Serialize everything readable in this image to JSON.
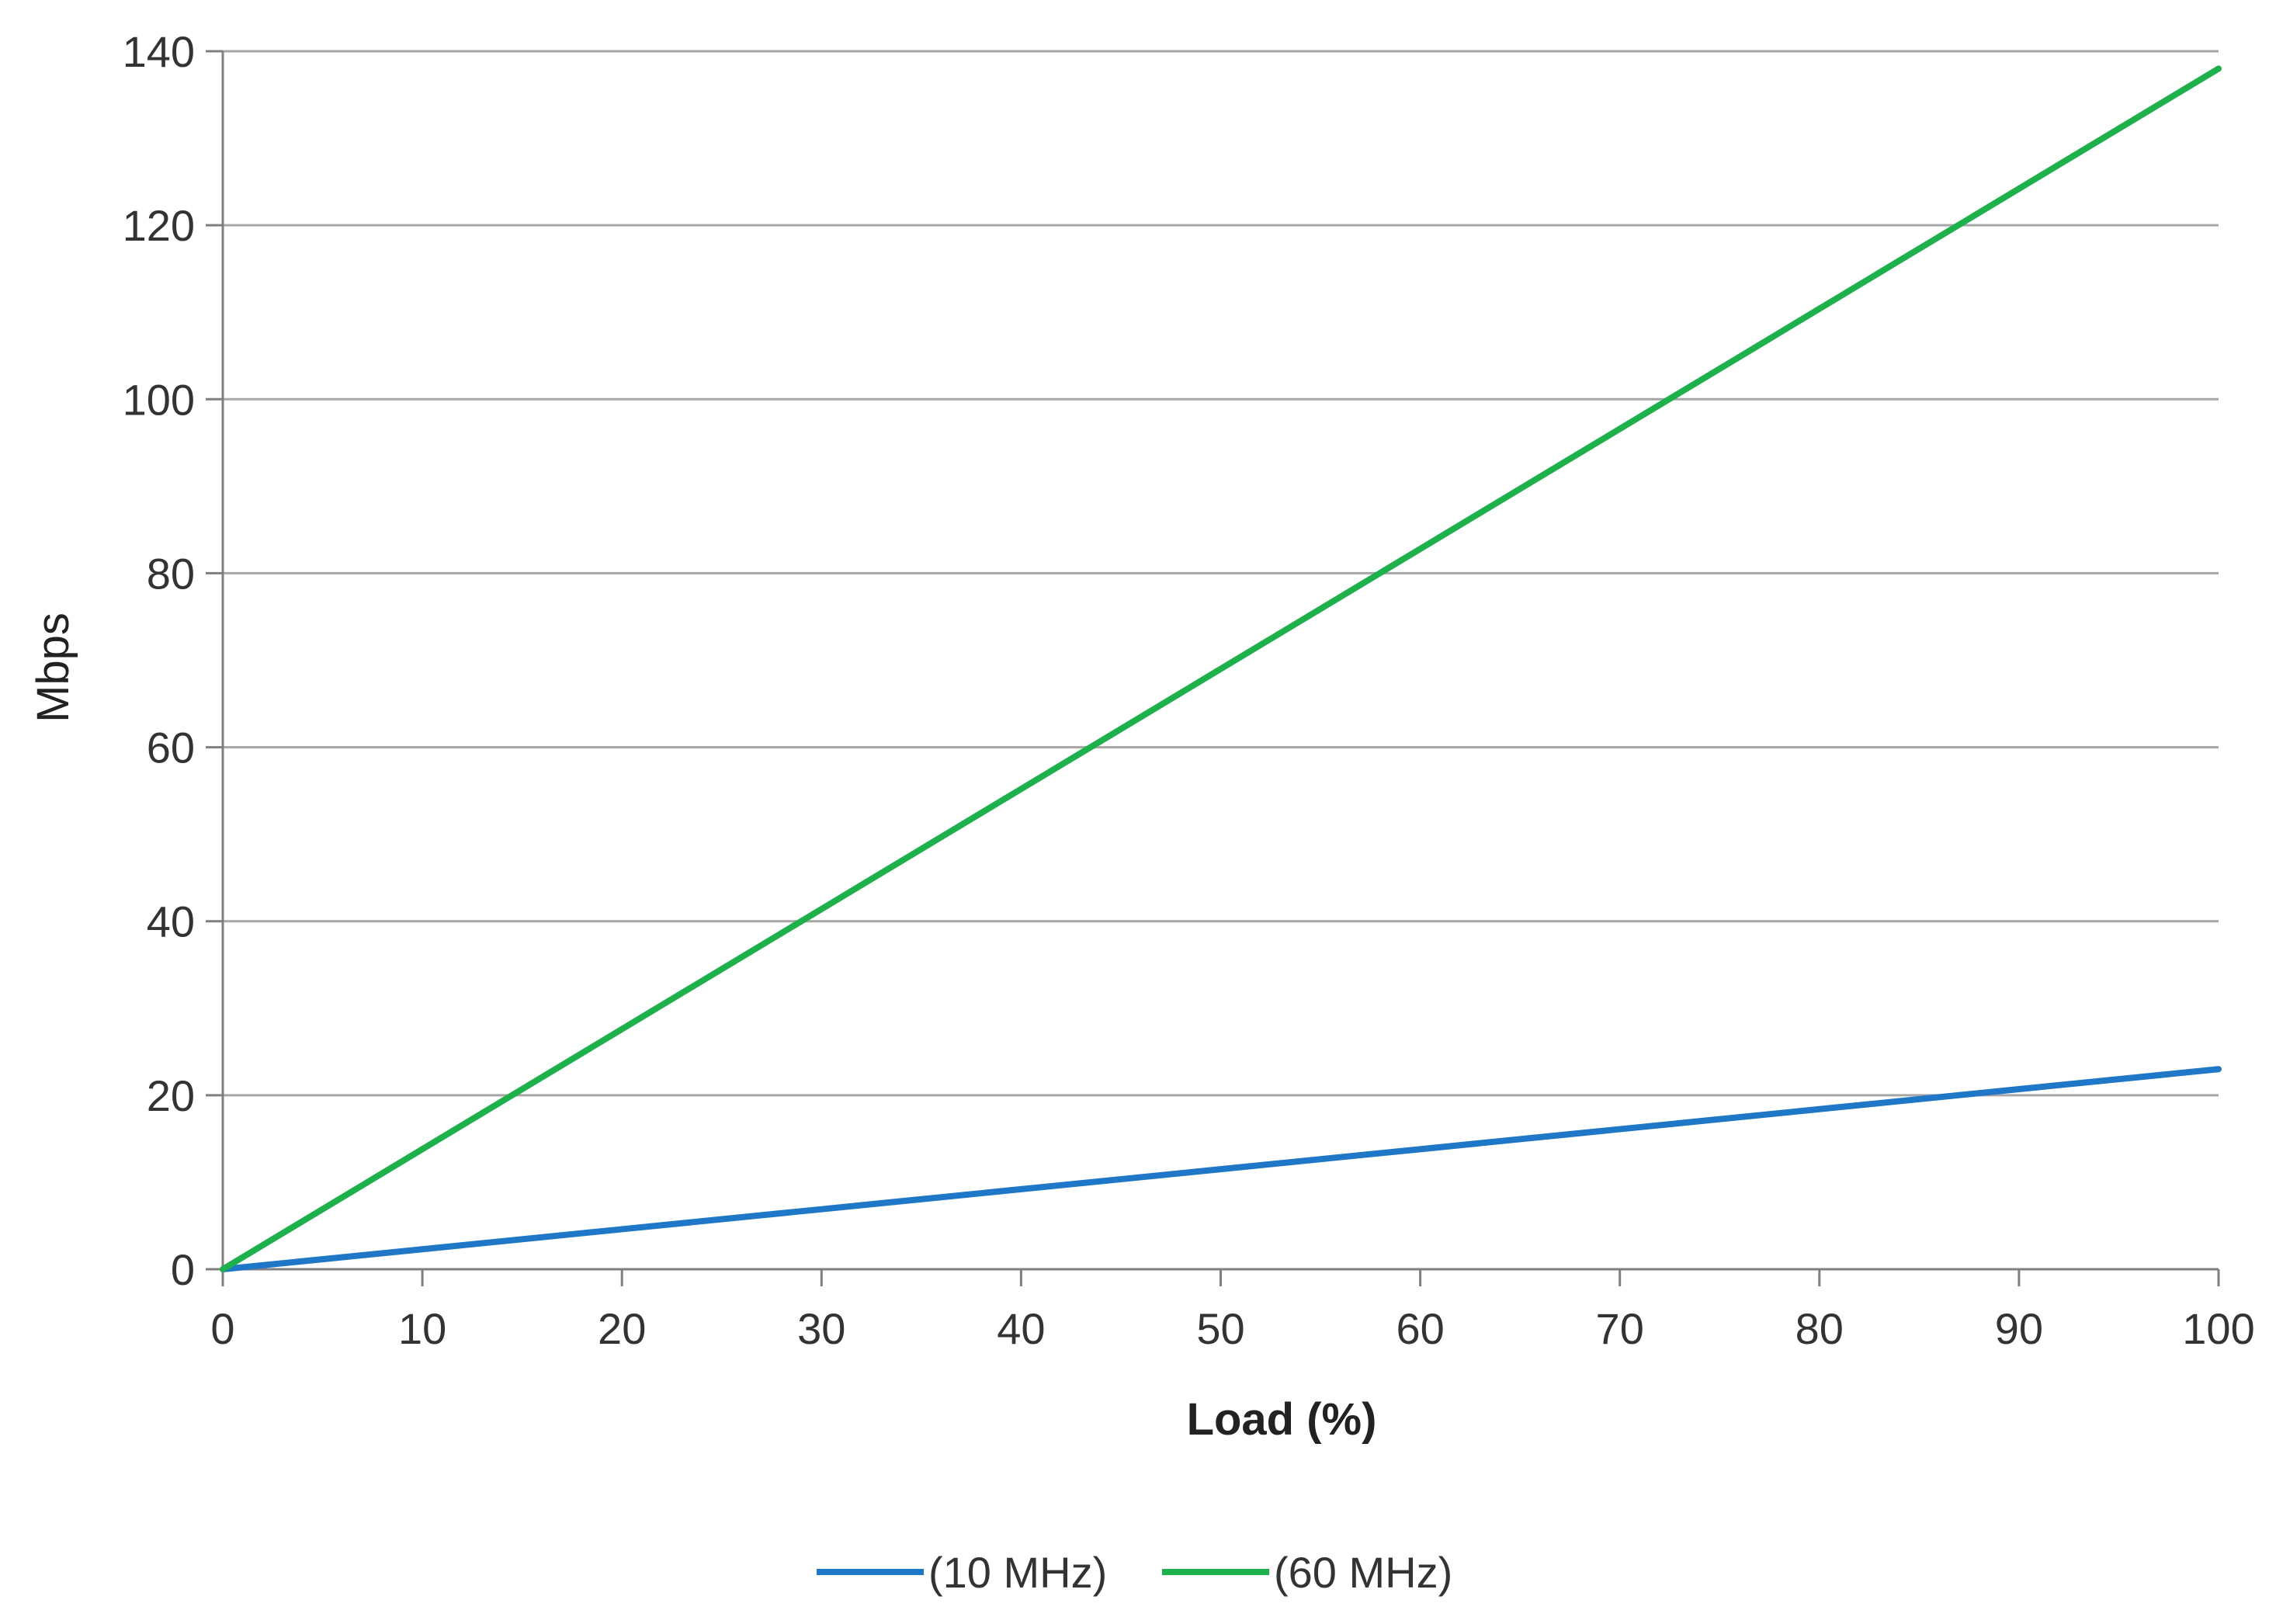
{
  "chart_data": {
    "type": "line",
    "xlabel": "Load (%)",
    "ylabel": "Mbps",
    "xlim": [
      0,
      100
    ],
    "ylim": [
      0,
      140
    ],
    "xticks": [
      0,
      10,
      20,
      30,
      40,
      50,
      60,
      70,
      80,
      90,
      100
    ],
    "yticks": [
      0,
      20,
      40,
      60,
      80,
      100,
      120,
      140
    ],
    "grid": "horizontal",
    "legend_position": "bottom-center",
    "x": [
      0,
      10,
      20,
      30,
      40,
      50,
      60,
      70,
      80,
      90,
      100
    ],
    "series": [
      {
        "name": "(10 MHz)",
        "color": "#1f77c8",
        "values": [
          0,
          2.3,
          4.6,
          6.9,
          9.2,
          11.5,
          13.8,
          16.1,
          18.4,
          20.7,
          23
        ]
      },
      {
        "name": "(60 MHz)",
        "color": "#1db14b",
        "values": [
          0,
          13.8,
          27.6,
          41.4,
          55.2,
          69,
          82.8,
          96.6,
          110.4,
          124.2,
          138
        ]
      }
    ]
  }
}
